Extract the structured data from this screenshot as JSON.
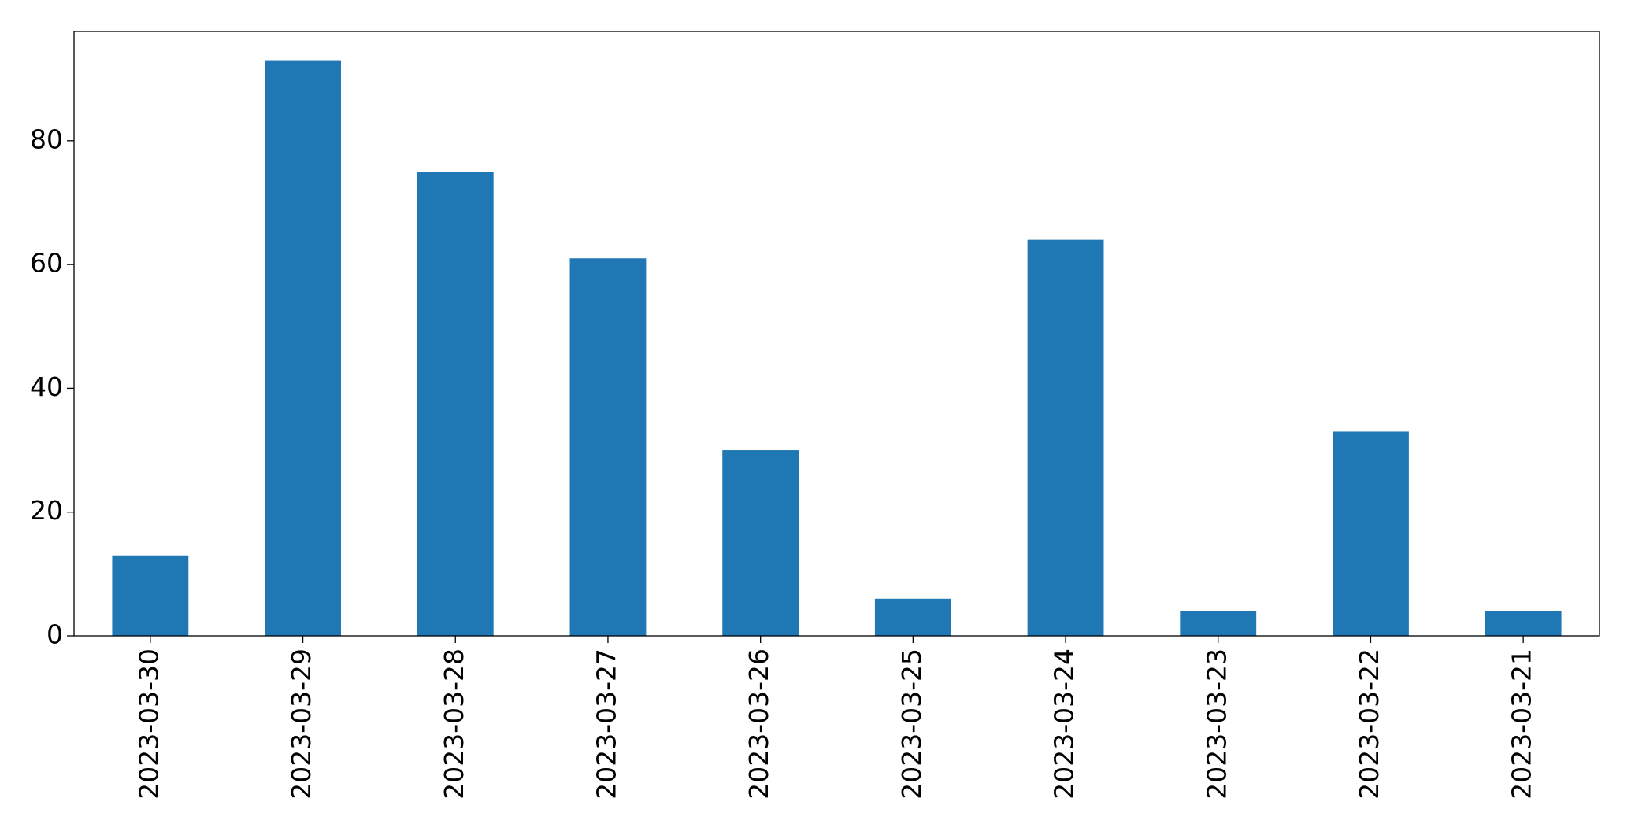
{
  "chart_data": {
    "type": "bar",
    "categories": [
      "2023-03-30",
      "2023-03-29",
      "2023-03-28",
      "2023-03-27",
      "2023-03-26",
      "2023-03-25",
      "2023-03-24",
      "2023-03-23",
      "2023-03-22",
      "2023-03-21"
    ],
    "values": [
      13,
      93,
      75,
      61,
      30,
      6,
      64,
      4,
      33,
      4
    ],
    "color": "#1f77b4",
    "ylim": [
      0,
      97.65
    ],
    "yticks": [
      0,
      20,
      40,
      60,
      80
    ],
    "grid": false
  }
}
